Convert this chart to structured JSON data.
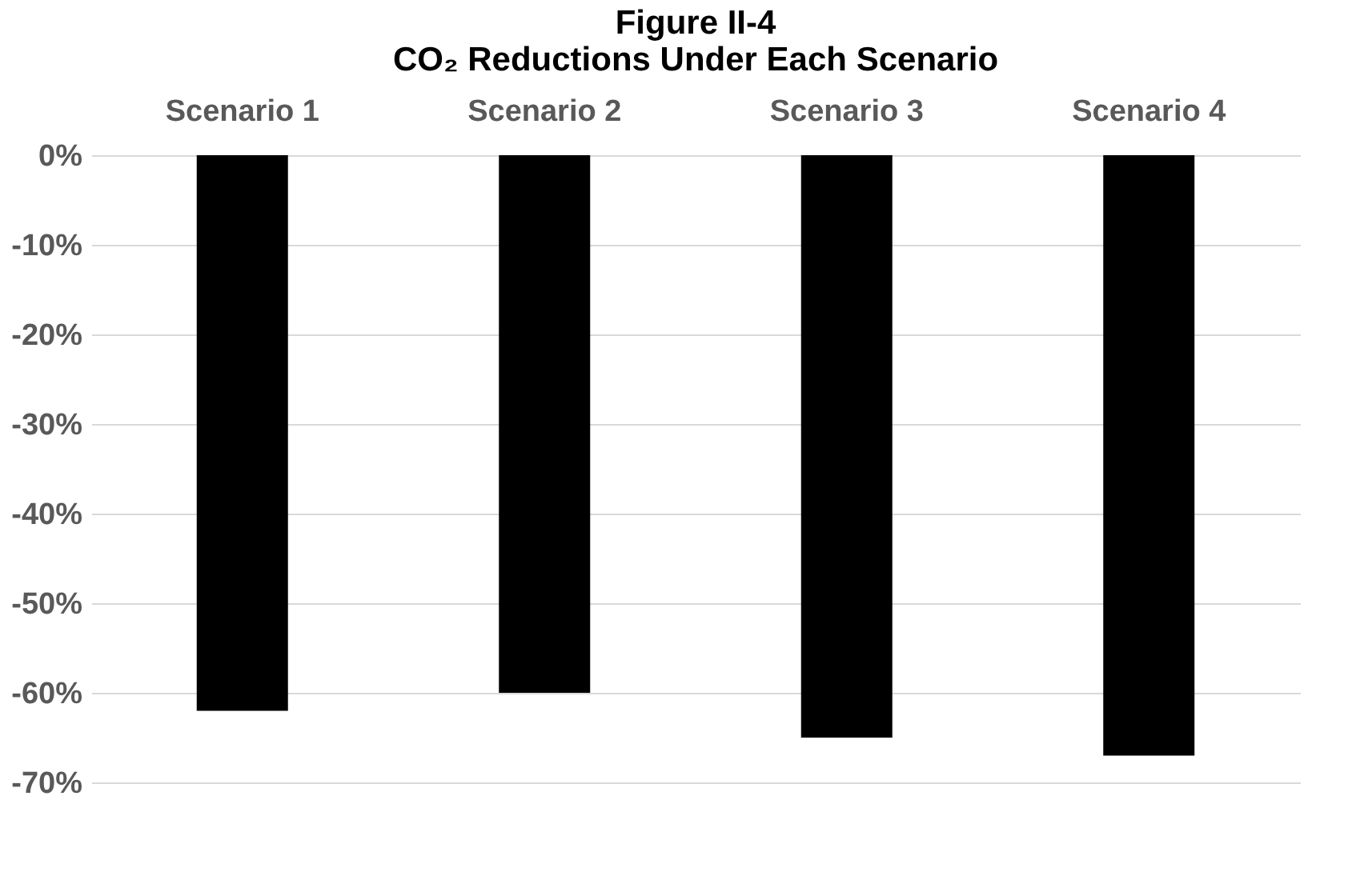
{
  "chart_data": {
    "type": "bar",
    "title": "Figure II-4",
    "subtitle": "CO₂ Reductions Under Each Scenario",
    "categories": [
      "Scenario 1",
      "Scenario 2",
      "Scenario 3",
      "Scenario 4"
    ],
    "values": [
      -62,
      -60,
      -65,
      -67
    ],
    "color": "#000000",
    "ylim": [
      -70,
      0
    ],
    "yticks": [
      {
        "value": 0,
        "label": "0%"
      },
      {
        "value": -10,
        "label": "-10%"
      },
      {
        "value": -20,
        "label": "-20%"
      },
      {
        "value": -30,
        "label": "-30%"
      },
      {
        "value": -40,
        "label": "-40%"
      },
      {
        "value": -50,
        "label": "-50%"
      },
      {
        "value": -60,
        "label": "-60%"
      },
      {
        "value": -70,
        "label": "-70%"
      }
    ],
    "grid": "y"
  }
}
